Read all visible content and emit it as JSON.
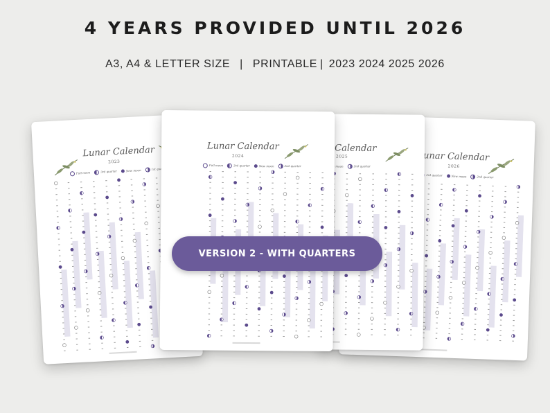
{
  "header": {
    "headline": "4 YEARS PROVIDED UNTIL 2026",
    "sizes": "A3, A4 & LETTER SIZE",
    "separator": "|",
    "printable": "PRINTABLE",
    "years": "2023 2024 2025 2026"
  },
  "badge": {
    "label": "VERSION 2 - WITH QUARTERS"
  },
  "colors": {
    "background": "#ededeb",
    "badge": "#6b5b9a",
    "moon_dark": "#5b4a8c",
    "highlight_band": "#e4e2ee",
    "paper": "#ffffff"
  },
  "sheets": [
    {
      "title": "Lunar Calendar",
      "year": "2023",
      "legend": [
        "Full moon",
        "3rd quarter",
        "New moon",
        "1st quarter"
      ]
    },
    {
      "title": "Lunar Calendar",
      "year": "2024",
      "legend": [
        "Full moon",
        "3rd quarter",
        "New moon",
        "2nd quarter"
      ]
    },
    {
      "title": "ar Calendar",
      "year": "2025",
      "legend": [
        "Full moon",
        "3rd quarter",
        "New moon",
        "2nd quarter"
      ]
    },
    {
      "title": "unar Calendar",
      "year": "2026",
      "legend": [
        "3rd quarter",
        "New moon",
        "2nd quarter"
      ]
    }
  ]
}
